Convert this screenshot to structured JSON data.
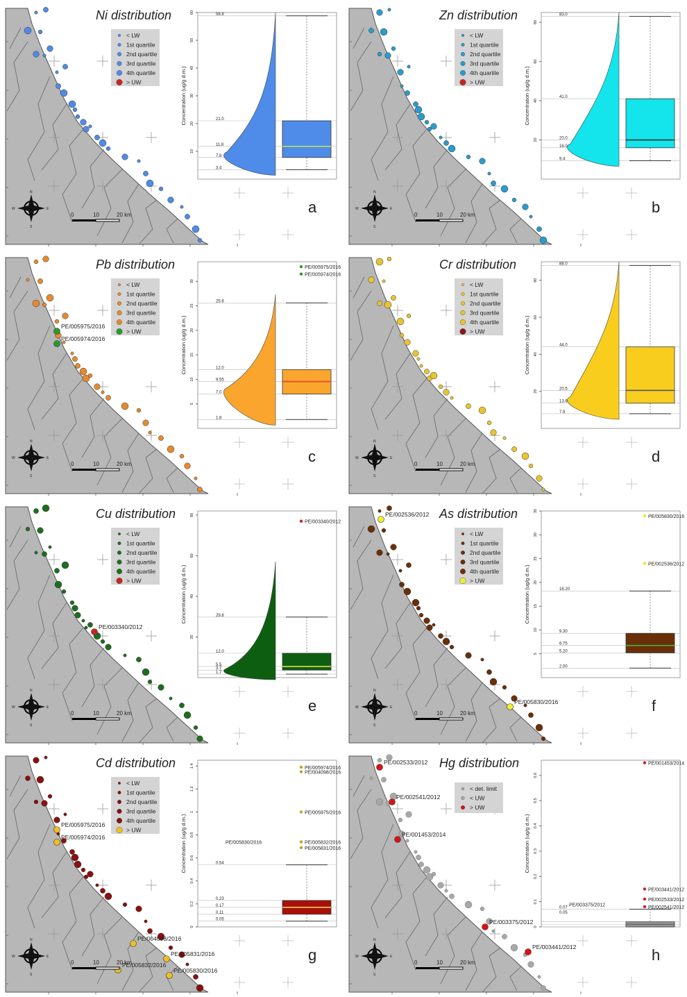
{
  "map": {
    "scale_labels": [
      "0",
      "10",
      "20 km"
    ],
    "compass_labels": [
      "N",
      "S",
      "W",
      "E"
    ],
    "colors": {
      "land": "#b7b7b7",
      "border": "#666666",
      "sea": "#ffffff"
    }
  },
  "panels": [
    {
      "letter": "a",
      "title": "Ni distribution",
      "color": "#4f8be8",
      "median_color": "#b8e05a",
      "legend": [
        "< LW",
        "1st quartile",
        "2nd quartile",
        "3rd quartile",
        "4th quartile",
        "> UW"
      ],
      "legend_colors": [
        "#4f8be8",
        "#4f8be8",
        "#4f8be8",
        "#4f8be8",
        "#4f8be8",
        "#cc2222"
      ],
      "ylabel": "Concentration (ug/g d.m.)",
      "ylim": [
        0,
        60
      ],
      "ticks": [
        10,
        20,
        30,
        40,
        50,
        60
      ],
      "labels": [
        "58.8",
        "21.0",
        "11.8",
        "7.8",
        "3.4"
      ],
      "box": {
        "whisker_low": 3.4,
        "q1": 7.8,
        "median": 11.8,
        "q3": 21.0,
        "whisker_high": 58.8
      },
      "outliers": [],
      "map_labels": [],
      "legend_type": "quartile"
    },
    {
      "letter": "b",
      "title": "Zn distribution",
      "color": "#14e4ec",
      "median_color": "#333333",
      "legend": [
        "< LW",
        "1st quartile",
        "2nd quartile",
        "3rd quartile",
        "4th quartile",
        "> UW"
      ],
      "legend_colors": [
        "#2a9ccc",
        "#2a9ccc",
        "#2a9ccc",
        "#2a9ccc",
        "#2a9ccc",
        "#cc2222"
      ],
      "ylabel": "Concentration (ug/g d.m.)",
      "ylim": [
        0,
        85
      ],
      "ticks": [
        20,
        40,
        60,
        80
      ],
      "labels": [
        "83.0",
        "41.0",
        "20.0",
        "16.0",
        "9.4"
      ],
      "box": {
        "whisker_low": 9.4,
        "q1": 16.0,
        "median": 20.0,
        "q3": 41.0,
        "whisker_high": 83.0
      },
      "outliers": [],
      "map_labels": [],
      "legend_type": "quartile"
    },
    {
      "letter": "c",
      "title": "Pb distribution",
      "color": "#f9a52e",
      "median_color": "#e2472a",
      "legend": [
        "< LW",
        "1st quartile",
        "2nd quartile",
        "3rd quartile",
        "4th quartile",
        "> UW"
      ],
      "legend_colors": [
        "#e68a2e",
        "#e68a2e",
        "#e68a2e",
        "#e68a2e",
        "#e68a2e",
        "#2a9a2a"
      ],
      "ylabel": "Concentration (ug/g d.m.)",
      "ylim": [
        0,
        34
      ],
      "ticks": [
        5,
        10,
        15,
        20,
        25,
        30
      ],
      "labels": [
        "25.6",
        "12.0",
        "9.55",
        "7.0",
        "1.8"
      ],
      "box": {
        "whisker_low": 1.8,
        "q1": 7.0,
        "median": 9.55,
        "q3": 12.0,
        "whisker_high": 25.6
      },
      "outliers": [
        {
          "value": 33.0,
          "label": "PE/005975/2016",
          "color": "#2a9a2a"
        },
        {
          "value": 31.5,
          "label": "PE/005974/2016",
          "color": "#2a9a2a"
        }
      ],
      "map_labels": [
        "PE/005975/2016",
        "PE/005974/2016"
      ],
      "legend_type": "quartile"
    },
    {
      "letter": "d",
      "title": "Cr distribution",
      "color": "#f9cd1e",
      "median_color": "#555555",
      "legend": [
        "< LW",
        "1st quartile",
        "2nd quartile",
        "3rd quartile",
        "4th quartile",
        "> UW"
      ],
      "legend_colors": [
        "#e8c42e",
        "#e8c42e",
        "#e8c42e",
        "#e8c42e",
        "#e8c42e",
        "#8a1a1a"
      ],
      "ylabel": "Concentration (ug/g d.m.)",
      "ylim": [
        0,
        90
      ],
      "ticks": [
        20,
        40,
        60,
        80
      ],
      "labels": [
        "88.0",
        "44.0",
        "20.5",
        "13.6",
        "7.9"
      ],
      "box": {
        "whisker_low": 7.9,
        "q1": 13.6,
        "median": 20.5,
        "q3": 44.0,
        "whisker_high": 88.0
      },
      "outliers": [],
      "map_labels": [],
      "legend_type": "quartile"
    },
    {
      "letter": "e",
      "title": "Cu distribution",
      "color": "#0e5e12",
      "median_color": "#d7e04a",
      "legend": [
        "< LW",
        "1st quartile",
        "2nd quartile",
        "3rd quartile",
        "4th quartile",
        "> UW"
      ],
      "legend_colors": [
        "#1e6e1e",
        "#1e6e1e",
        "#1e6e1e",
        "#1e6e1e",
        "#1e6e1e",
        "#cc2222"
      ],
      "ylabel": "Concentration (ug/g d.m.)",
      "ylim": [
        0,
        82
      ],
      "ticks": [
        20,
        40,
        60,
        80
      ],
      "labels": [
        "29.8",
        "12.0",
        "5.5",
        "3.7",
        "1.7"
      ],
      "box": {
        "whisker_low": 1.7,
        "q1": 3.7,
        "median": 5.5,
        "q3": 12.0,
        "whisker_high": 29.8
      },
      "outliers": [
        {
          "value": 77.0,
          "label": "PE/003340/2012",
          "color": "#cc2222"
        }
      ],
      "map_labels": [
        "PE/003340/2012"
      ],
      "legend_type": "quartile"
    },
    {
      "letter": "f",
      "title": "As distribution",
      "color": "#6a2f08",
      "median_color": "#4ab04a",
      "legend": [
        "< LW",
        "1st quartile",
        "2nd quartile",
        "3rd quartile",
        "4th quartile",
        "> UW"
      ],
      "legend_colors": [
        "#6a2f08",
        "#6a2f08",
        "#6a2f08",
        "#6a2f08",
        "#6a2f08",
        "#f0ee30"
      ],
      "ylabel": "Concentration (ug/g d.m.)",
      "ylim": [
        0,
        35
      ],
      "ticks": [
        5,
        10,
        15,
        20,
        25,
        30,
        35
      ],
      "labels": [
        "18.20",
        "9.30",
        "6.75",
        "5.20",
        "2.00"
      ],
      "box": {
        "whisker_low": 2.0,
        "q1": 5.2,
        "median": 6.75,
        "q3": 9.3,
        "whisker_high": 18.2
      },
      "outliers": [
        {
          "value": 34.0,
          "label": "PE/005830/2016",
          "color": "#e8e830"
        },
        {
          "value": 24.0,
          "label": "PE/002536/2012",
          "color": "#e8e830"
        }
      ],
      "map_labels": [
        "PE/002536/2012",
        "PE/005830/2016"
      ],
      "legend_type": "quartile"
    },
    {
      "letter": "g",
      "title": "Cd distribution",
      "color": "#a81008",
      "median_color": "#e8d060",
      "legend": [
        "< LW",
        "1st quartile",
        "2nd quartile",
        "3rd quartile",
        "4th quartile",
        "> UW"
      ],
      "legend_colors": [
        "#8a1010",
        "#8a1010",
        "#8a1010",
        "#8a1010",
        "#8a1010",
        "#f0c020"
      ],
      "ylabel": "Concentration (ug/g d.m.)",
      "ylim": [
        0,
        1.45
      ],
      "ticks": [
        0.0,
        0.2,
        0.4,
        0.6,
        0.8,
        1.0,
        1.2,
        1.4
      ],
      "labels": [
        "0.54",
        "0.23",
        "0.17",
        "0.11",
        "0.05"
      ],
      "box": {
        "whisker_low": 0.05,
        "q1": 0.11,
        "median": 0.17,
        "q3": 0.23,
        "whisker_high": 0.54
      },
      "outliers": [
        {
          "value": 1.39,
          "label": "PE/005974/2016",
          "color": "#c8a020"
        },
        {
          "value": 1.35,
          "label": "PE/004098/2016",
          "color": "#c8a020"
        },
        {
          "value": 1.0,
          "label": "PE/005975/2016",
          "color": "#c8a020"
        },
        {
          "value": 0.74,
          "label": "PE/005832/2016",
          "color": "#c8a020"
        },
        {
          "value": 0.69,
          "label": "PE/005831/2016",
          "color": "#c8a020"
        }
      ],
      "outlier_left_label": "PE/005830/2016",
      "map_labels": [
        "PE/005975/2016",
        "PE/005974/2016",
        "PE/004098/2016",
        "PE/005831/2016",
        "PE/005832/2016",
        "PE/005830/2016"
      ],
      "legend_type": "quartile"
    },
    {
      "letter": "h",
      "title": "Hg distribution",
      "color": "#999999",
      "median_color": "#666666",
      "legend": [
        "< det. limit",
        "< UW",
        "> UW"
      ],
      "legend_colors": [
        "#aaaaaa",
        "#aaaaaa",
        "#dd1111"
      ],
      "ylabel": "Concentration (ug/g d.m.)",
      "ylim": [
        0,
        0.66
      ],
      "ticks": [
        0.0,
        0.1,
        0.2,
        0.3,
        0.4,
        0.5,
        0.6
      ],
      "labels": [
        "0.07",
        "0.05"
      ],
      "box": {
        "whisker_low": 0.0,
        "q1": 0.0,
        "median": 0.01,
        "q3": 0.02,
        "whisker_high": 0.07
      },
      "outliers": [
        {
          "value": 0.65,
          "label": "PE/001453/2014",
          "color": "#cc2222"
        },
        {
          "value": 0.15,
          "label": "PE/003441/2012",
          "color": "#cc2222"
        },
        {
          "value": 0.11,
          "label": "PE/002533/2012",
          "color": "#cc2222"
        },
        {
          "value": 0.08,
          "label": "PE/002541/2012",
          "color": "#cc2222"
        }
      ],
      "outlier_left_label": "PE/003375/2012",
      "map_labels": [
        "PE/002533/2012",
        "PE/002541/2012",
        "PE/001453/2014",
        "PE/003375/2012",
        "PE/003441/2012"
      ],
      "legend_type": "hg"
    }
  ],
  "chart_data": [
    {
      "type": "box",
      "panel": "a",
      "title": "Ni distribution",
      "ylabel": "Concentration (ug/g d.m.)",
      "ylim": [
        0,
        60
      ],
      "whisker_low": 3.4,
      "q1": 7.8,
      "median": 11.8,
      "q3": 21.0,
      "whisker_high": 58.8,
      "outliers": []
    },
    {
      "type": "box",
      "panel": "b",
      "title": "Zn distribution",
      "ylabel": "Concentration (ug/g d.m.)",
      "ylim": [
        0,
        85
      ],
      "whisker_low": 9.4,
      "q1": 16.0,
      "median": 20.0,
      "q3": 41.0,
      "whisker_high": 83.0,
      "outliers": []
    },
    {
      "type": "box",
      "panel": "c",
      "title": "Pb distribution",
      "ylabel": "Concentration (ug/g d.m.)",
      "ylim": [
        0,
        34
      ],
      "whisker_low": 1.8,
      "q1": 7.0,
      "median": 9.55,
      "q3": 12.0,
      "whisker_high": 25.6,
      "outliers": [
        {
          "label": "PE/005975/2016",
          "value": 33.0
        },
        {
          "label": "PE/005974/2016",
          "value": 31.5
        }
      ]
    },
    {
      "type": "box",
      "panel": "d",
      "title": "Cr distribution",
      "ylabel": "Concentration (ug/g d.m.)",
      "ylim": [
        0,
        90
      ],
      "whisker_low": 7.9,
      "q1": 13.6,
      "median": 20.5,
      "q3": 44.0,
      "whisker_high": 88.0,
      "outliers": []
    },
    {
      "type": "box",
      "panel": "e",
      "title": "Cu distribution",
      "ylabel": "Concentration (ug/g d.m.)",
      "ylim": [
        0,
        82
      ],
      "whisker_low": 1.7,
      "q1": 3.7,
      "median": 5.5,
      "q3": 12.0,
      "whisker_high": 29.8,
      "outliers": [
        {
          "label": "PE/003340/2012",
          "value": 77.0
        }
      ]
    },
    {
      "type": "box",
      "panel": "f",
      "title": "As distribution",
      "ylabel": "Concentration (ug/g d.m.)",
      "ylim": [
        0,
        35
      ],
      "whisker_low": 2.0,
      "q1": 5.2,
      "median": 6.75,
      "q3": 9.3,
      "whisker_high": 18.2,
      "outliers": [
        {
          "label": "PE/005830/2016",
          "value": 34.0
        },
        {
          "label": "PE/002536/2012",
          "value": 24.0
        }
      ]
    },
    {
      "type": "box",
      "panel": "g",
      "title": "Cd distribution",
      "ylabel": "Concentration (ug/g d.m.)",
      "ylim": [
        0,
        1.45
      ],
      "whisker_low": 0.05,
      "q1": 0.11,
      "median": 0.17,
      "q3": 0.23,
      "whisker_high": 0.54,
      "outliers": [
        {
          "label": "PE/005974/2016",
          "value": 1.39
        },
        {
          "label": "PE/004098/2016",
          "value": 1.35
        },
        {
          "label": "PE/005975/2016",
          "value": 1.0
        },
        {
          "label": "PE/005832/2016",
          "value": 0.74
        },
        {
          "label": "PE/005830/2016",
          "value": 0.74
        },
        {
          "label": "PE/005831/2016",
          "value": 0.69
        }
      ]
    },
    {
      "type": "box",
      "panel": "h",
      "title": "Hg distribution",
      "ylabel": "Concentration (ug/g d.m.)",
      "ylim": [
        0,
        0.66
      ],
      "whisker_high": 0.07,
      "outliers": [
        {
          "label": "PE/001453/2014",
          "value": 0.65
        },
        {
          "label": "PE/003441/2012",
          "value": 0.15
        },
        {
          "label": "PE/002533/2012",
          "value": 0.11
        },
        {
          "label": "PE/003375/2012",
          "value": 0.09
        },
        {
          "label": "PE/002541/2012",
          "value": 0.08
        }
      ]
    }
  ]
}
